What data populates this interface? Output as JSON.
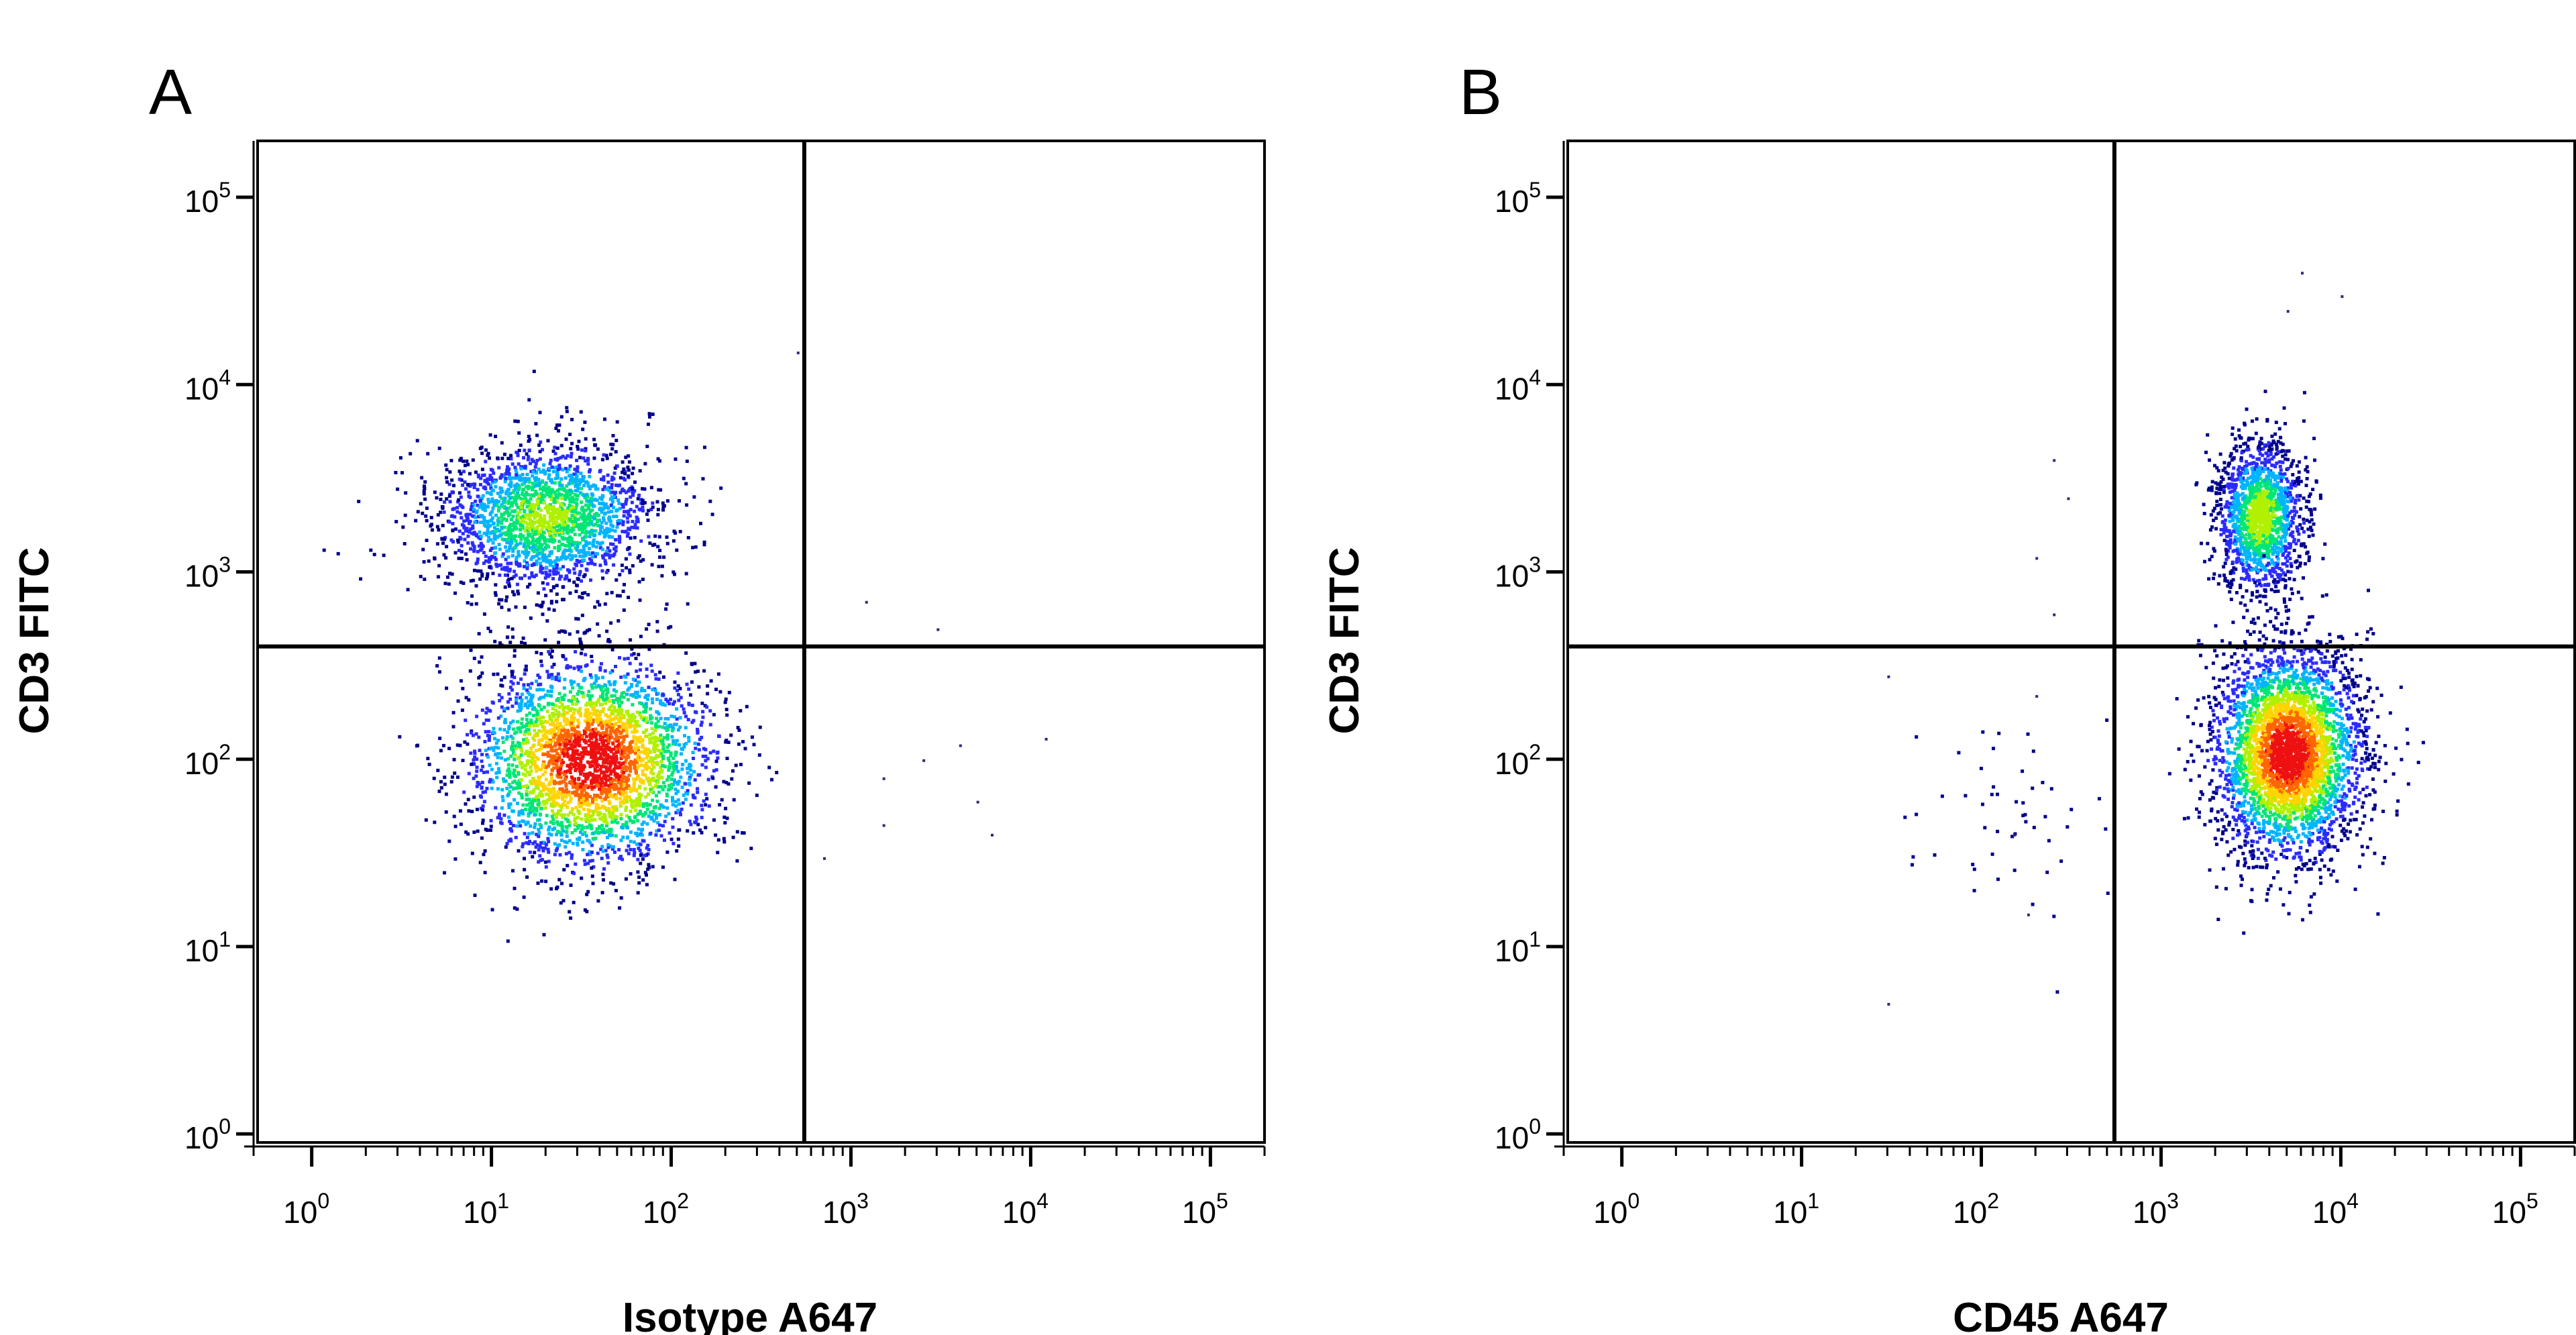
{
  "panels": [
    {
      "letter": "A"
    },
    {
      "letter": "B"
    }
  ],
  "chart_data": [
    {
      "type": "scatter",
      "panel": "A",
      "plot_style": "pseudocolor density dot plot (flow cytometry)",
      "xlabel": "Isotype A647",
      "ylabel": "CD3 FITC",
      "x_scale": "log",
      "y_scale": "log",
      "xlim": [
        0.5,
        200000
      ],
      "ylim": [
        0.9,
        200000
      ],
      "x_ticks": [
        {
          "value": 1,
          "base": "10",
          "exp": "0"
        },
        {
          "value": 10,
          "base": "10",
          "exp": "1"
        },
        {
          "value": 100,
          "base": "10",
          "exp": "2"
        },
        {
          "value": 1000,
          "base": "10",
          "exp": "3"
        },
        {
          "value": 10000,
          "base": "10",
          "exp": "4"
        },
        {
          "value": 100000,
          "base": "10",
          "exp": "5"
        }
      ],
      "y_ticks": [
        {
          "value": 1,
          "base": "10",
          "exp": "0"
        },
        {
          "value": 10,
          "base": "10",
          "exp": "1"
        },
        {
          "value": 100,
          "base": "10",
          "exp": "2"
        },
        {
          "value": 1000,
          "base": "10",
          "exp": "3"
        },
        {
          "value": 10000,
          "base": "10",
          "exp": "4"
        },
        {
          "value": 100000,
          "base": "10",
          "exp": "5"
        }
      ],
      "quadrant_gate": {
        "x": 550,
        "y": 400
      },
      "populations": [
        {
          "center": [
            20,
            2000
          ],
          "spread": [
            0.3,
            0.2
          ],
          "weight": 0.4,
          "peak": 0.55
        },
        {
          "center": [
            35,
            100
          ],
          "spread": [
            0.33,
            0.27
          ],
          "weight": 0.6,
          "peak": 1.0
        }
      ],
      "outliers": [
        [
          1500,
          80
        ],
        [
          2500,
          100
        ],
        [
          4000,
          120
        ],
        [
          5000,
          60
        ],
        [
          700,
          30
        ],
        [
          1200,
          700
        ],
        [
          500,
          15000
        ],
        [
          3000,
          500
        ],
        [
          6000,
          40
        ],
        [
          1500,
          45
        ],
        [
          12000,
          130
        ]
      ],
      "density_colors": [
        "#00008b",
        "#2b2bff",
        "#00b4ff",
        "#00e676",
        "#b0f000",
        "#ffd400",
        "#ff6600",
        "#ee1111"
      ]
    },
    {
      "type": "scatter",
      "panel": "B",
      "plot_style": "pseudocolor density dot plot (flow cytometry)",
      "xlabel": "CD45 A647",
      "ylabel": "CD3 FITC",
      "x_scale": "log",
      "y_scale": "log",
      "xlim": [
        0.5,
        200000
      ],
      "ylim": [
        0.9,
        200000
      ],
      "x_ticks": [
        {
          "value": 1,
          "base": "10",
          "exp": "0"
        },
        {
          "value": 10,
          "base": "10",
          "exp": "1"
        },
        {
          "value": 100,
          "base": "10",
          "exp": "2"
        },
        {
          "value": 1000,
          "base": "10",
          "exp": "3"
        },
        {
          "value": 10000,
          "base": "10",
          "exp": "4"
        },
        {
          "value": 100000,
          "base": "10",
          "exp": "5"
        }
      ],
      "y_ticks": [
        {
          "value": 1,
          "base": "10",
          "exp": "0"
        },
        {
          "value": 10,
          "base": "10",
          "exp": "1"
        },
        {
          "value": 100,
          "base": "10",
          "exp": "2"
        },
        {
          "value": 1000,
          "base": "10",
          "exp": "3"
        },
        {
          "value": 10000,
          "base": "10",
          "exp": "4"
        },
        {
          "value": 100000,
          "base": "10",
          "exp": "5"
        }
      ],
      "quadrant_gate": {
        "x": 550,
        "y": 400
      },
      "populations": [
        {
          "center": [
            3500,
            2000
          ],
          "spread": [
            0.12,
            0.2
          ],
          "weight": 0.3,
          "peak": 0.6
        },
        {
          "center": [
            5000,
            110
          ],
          "spread": [
            0.2,
            0.27
          ],
          "weight": 0.7,
          "peak": 1.0
        },
        {
          "center": [
            150,
            50
          ],
          "spread": [
            0.28,
            0.28
          ],
          "weight": 0.01,
          "peak": 0.05
        }
      ],
      "outliers": [
        [
          200,
          1200
        ],
        [
          250,
          4000
        ],
        [
          300,
          2500
        ],
        [
          30,
          280
        ],
        [
          30,
          5
        ],
        [
          250,
          600
        ],
        [
          180,
          15
        ],
        [
          150,
          40
        ],
        [
          10000,
          30000
        ],
        [
          6000,
          40000
        ],
        [
          5000,
          25000
        ],
        [
          200,
          220
        ]
      ],
      "density_colors": [
        "#00008b",
        "#2b2bff",
        "#00b4ff",
        "#00e676",
        "#b0f000",
        "#ffd400",
        "#ff6600",
        "#ee1111"
      ]
    }
  ]
}
